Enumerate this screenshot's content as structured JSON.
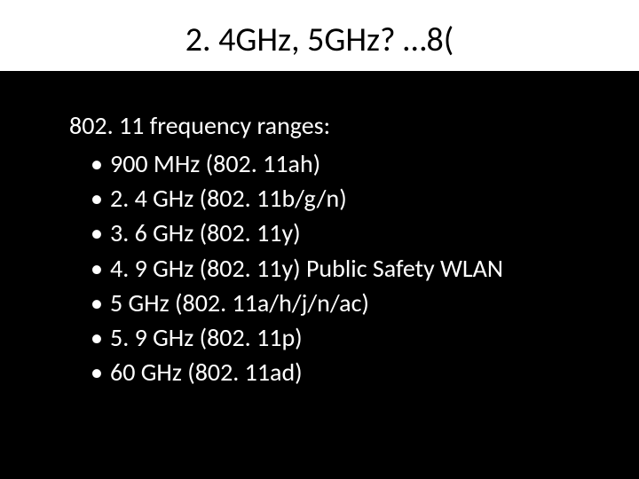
{
  "slide": {
    "title": "2. 4GHz, 5GHz?  …8(",
    "intro": "802. 11 frequency ranges:",
    "bullets": [
      "900 MHz (802. 11ah)",
      "2. 4 GHz (802. 11b/g/n)",
      "3. 6 GHz (802. 11y)",
      "4. 9 GHz (802. 11y) Public Safety WLAN",
      "5 GHz (802. 11a/h/j/n/ac)",
      "5. 9 GHz (802. 11p)",
      "60 GHz (802. 11ad)"
    ],
    "colors": {
      "background": "#000000",
      "title_background": "#ffffff",
      "title_text": "#000000",
      "body_text": "#ffffff"
    },
    "typography": {
      "title_fontsize": 38,
      "body_fontsize": 28,
      "font_family": "Calibri"
    }
  }
}
